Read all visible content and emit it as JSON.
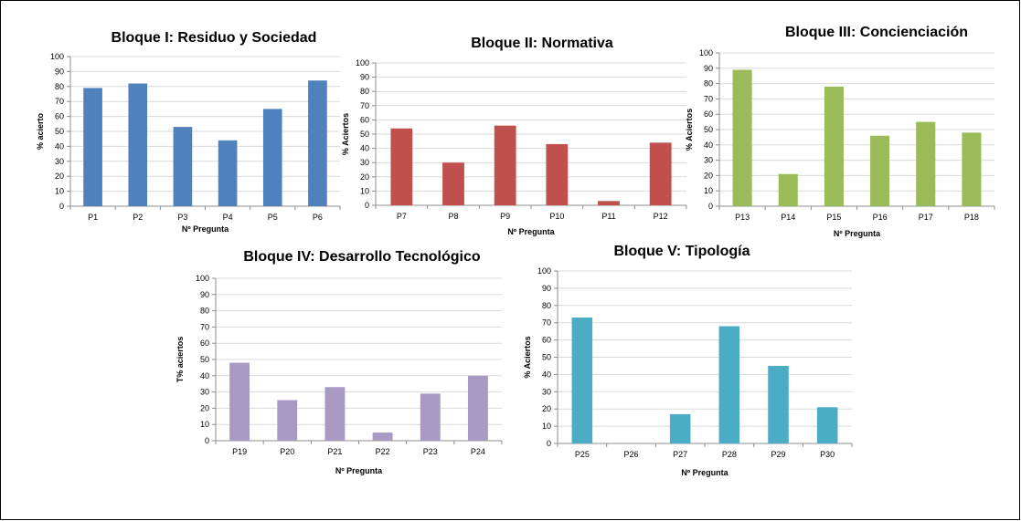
{
  "chart_data": [
    {
      "type": "bar",
      "title": "Bloque I: Residuo y Sociedad",
      "xlabel": "Nº Pregunta",
      "ylabel": "% acierto",
      "ylim": [
        0,
        100
      ],
      "yticks": [
        "0",
        "10",
        "20",
        "30",
        "40",
        "50",
        "60",
        "70",
        "80",
        "90",
        "100"
      ],
      "grid": true,
      "color": "#4f81bd",
      "categories": [
        "P1",
        "P2",
        "P3",
        "P4",
        "P5",
        "P6"
      ],
      "values": [
        79,
        82,
        53,
        44,
        65,
        84
      ]
    },
    {
      "type": "bar",
      "title": "Bloque II: Normativa",
      "xlabel": "Nº Pregunta",
      "ylabel": "% Aciertos",
      "ylim": [
        0,
        100
      ],
      "yticks": [
        "0",
        "10",
        "20",
        "30",
        "40",
        "50",
        "60",
        "70",
        "80",
        "90",
        "100"
      ],
      "grid": true,
      "color": "#c0504d",
      "categories": [
        "P7",
        "P8",
        "P9",
        "P10",
        "P11",
        "P12"
      ],
      "values": [
        54,
        30,
        56,
        43,
        3,
        44
      ]
    },
    {
      "type": "bar",
      "title": "Bloque III: Concienciación",
      "xlabel": "Nº Pregunta",
      "ylabel": "% Aciertos",
      "ylim": [
        0,
        100
      ],
      "yticks": [
        "0",
        "10",
        "20",
        "30",
        "40",
        "50",
        "60",
        "70",
        "80",
        "90",
        "100"
      ],
      "grid": true,
      "color": "#9bbb59",
      "categories": [
        "P13",
        "P14",
        "P15",
        "P16",
        "P17",
        "P18"
      ],
      "values": [
        89,
        21,
        78,
        46,
        55,
        48
      ]
    },
    {
      "type": "bar",
      "title": "Bloque IV: Desarrollo Tecnológico",
      "xlabel": "Nº Pregunta",
      "ylabel": "T% aciertos",
      "ylim": [
        0,
        100
      ],
      "yticks": [
        "0",
        "10",
        "20",
        "30",
        "40",
        "50",
        "60",
        "70",
        "80",
        "90",
        "100"
      ],
      "grid": true,
      "color": "#a99ac4",
      "categories": [
        "P19",
        "P20",
        "P21",
        "P22",
        "P23",
        "P24"
      ],
      "values": [
        48,
        25,
        33,
        5,
        29,
        40
      ]
    },
    {
      "type": "bar",
      "title": "Bloque V: Tipología",
      "xlabel": "Nº Pregunta",
      "ylabel": "% Aciertos",
      "ylim": [
        0,
        100
      ],
      "yticks": [
        "0",
        "10",
        "20",
        "30",
        "40",
        "50",
        "60",
        "70",
        "80",
        "90",
        "100"
      ],
      "grid": true,
      "color": "#4bacc6",
      "categories": [
        "P25",
        "P26",
        "P27",
        "P28",
        "P29",
        "P30"
      ],
      "values": [
        73,
        0,
        17,
        68,
        45,
        21
      ]
    }
  ]
}
